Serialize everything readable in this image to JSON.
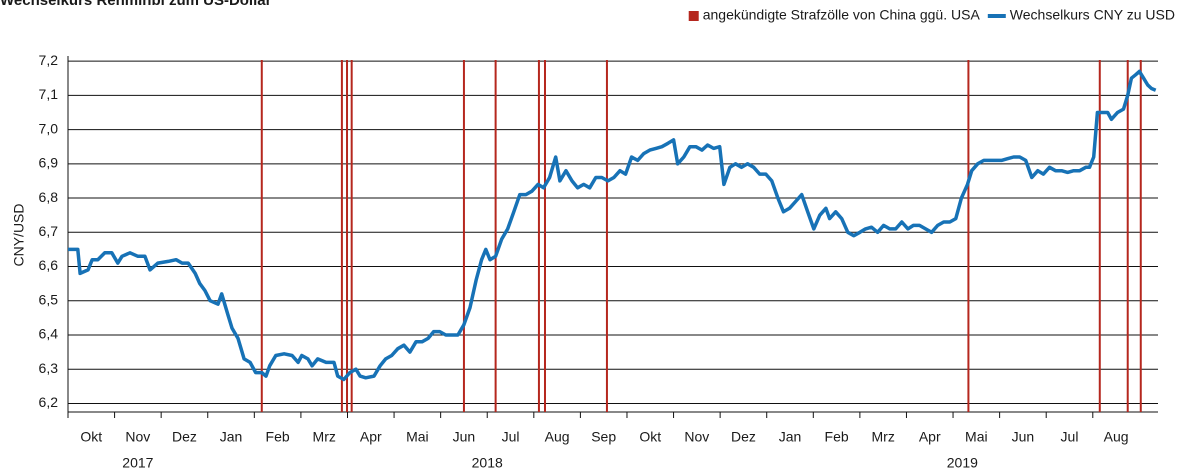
{
  "chart_data": {
    "type": "line",
    "title": "Wechselkurs Renminbi zum US-Dollar",
    "ylabel": "CNY/USD",
    "legend": "top-right",
    "grid": true,
    "xlim": [
      0,
      23.4
    ],
    "ylim": [
      6.175,
      7.215
    ],
    "yticks": [
      {
        "value": 6.2,
        "label": "6,2"
      },
      {
        "value": 6.3,
        "label": "6,3"
      },
      {
        "value": 6.4,
        "label": "6,4"
      },
      {
        "value": 6.5,
        "label": "6,5"
      },
      {
        "value": 6.6,
        "label": "6,6"
      },
      {
        "value": 6.7,
        "label": "6,7"
      },
      {
        "value": 6.8,
        "label": "6,8"
      },
      {
        "value": 6.9,
        "label": "6,9"
      },
      {
        "value": 7.0,
        "label": "7,0"
      },
      {
        "value": 7.1,
        "label": "7,1"
      },
      {
        "value": 7.2,
        "label": "7,2"
      }
    ],
    "xticks": [
      {
        "value": 0,
        "label": "Okt"
      },
      {
        "value": 1,
        "label": "Nov"
      },
      {
        "value": 2,
        "label": "Dez"
      },
      {
        "value": 3,
        "label": "Jan"
      },
      {
        "value": 4,
        "label": "Feb"
      },
      {
        "value": 5,
        "label": "Mrz"
      },
      {
        "value": 6,
        "label": "Apr"
      },
      {
        "value": 7,
        "label": "Mai"
      },
      {
        "value": 8,
        "label": "Jun"
      },
      {
        "value": 9,
        "label": "Jul"
      },
      {
        "value": 10,
        "label": "Aug"
      },
      {
        "value": 11,
        "label": "Sep"
      },
      {
        "value": 12,
        "label": "Okt"
      },
      {
        "value": 13,
        "label": "Nov"
      },
      {
        "value": 14,
        "label": "Dez"
      },
      {
        "value": 15,
        "label": "Jan"
      },
      {
        "value": 16,
        "label": "Feb"
      },
      {
        "value": 17,
        "label": "Mrz"
      },
      {
        "value": 18,
        "label": "Apr"
      },
      {
        "value": 19,
        "label": "Mai"
      },
      {
        "value": 20,
        "label": "Jun"
      },
      {
        "value": 21,
        "label": "Jul"
      },
      {
        "value": 22,
        "label": "Aug"
      }
    ],
    "year_labels": [
      {
        "value": 1.5,
        "label": "2017"
      },
      {
        "value": 9.0,
        "label": "2018"
      },
      {
        "value": 19.2,
        "label": "2019"
      }
    ],
    "events": {
      "name": "angekündigte Strafzölle von China ggü. USA",
      "color": "#b5271e",
      "x": [
        4.16,
        5.88,
        5.99,
        6.09,
        8.5,
        9.18,
        10.11,
        10.24,
        11.57,
        19.33,
        22.15,
        22.75,
        23.03
      ]
    },
    "x": [
      0,
      0.21,
      0.26,
      0.43,
      0.52,
      0.64,
      0.79,
      0.94,
      1.07,
      1.16,
      1.33,
      1.5,
      1.65,
      1.76,
      1.93,
      2.15,
      2.32,
      2.45,
      2.58,
      2.73,
      2.83,
      2.94,
      3.05,
      3.22,
      3.3,
      3.43,
      3.52,
      3.65,
      3.78,
      3.91,
      4.03,
      4.16,
      4.25,
      4.33,
      4.46,
      4.64,
      4.81,
      4.94,
      5.02,
      5.15,
      5.24,
      5.36,
      5.54,
      5.71,
      5.79,
      5.92,
      6.05,
      6.18,
      6.27,
      6.39,
      6.57,
      6.7,
      6.82,
      6.95,
      7.08,
      7.21,
      7.34,
      7.47,
      7.6,
      7.73,
      7.85,
      7.98,
      8.11,
      8.24,
      8.37,
      8.5,
      8.63,
      8.76,
      8.88,
      8.97,
      9.06,
      9.18,
      9.31,
      9.44,
      9.57,
      9.7,
      9.83,
      9.96,
      10.09,
      10.21,
      10.34,
      10.47,
      10.56,
      10.69,
      10.82,
      10.94,
      11.07,
      11.2,
      11.33,
      11.46,
      11.59,
      11.72,
      11.85,
      11.97,
      12.1,
      12.23,
      12.36,
      12.49,
      12.62,
      12.75,
      12.88,
      13,
      13.09,
      13.22,
      13.35,
      13.48,
      13.61,
      13.73,
      13.86,
      13.99,
      14.08,
      14.21,
      14.33,
      14.46,
      14.59,
      14.72,
      14.85,
      14.98,
      15.11,
      15.24,
      15.36,
      15.49,
      15.62,
      15.75,
      15.88,
      16.01,
      16.14,
      16.27,
      16.35,
      16.48,
      16.61,
      16.74,
      16.87,
      17,
      17.12,
      17.25,
      17.38,
      17.51,
      17.64,
      17.77,
      17.9,
      18.03,
      18.15,
      18.28,
      18.41,
      18.54,
      18.67,
      18.8,
      18.93,
      19.06,
      19.18,
      19.31,
      19.4,
      19.53,
      19.66,
      19.79,
      19.91,
      20.04,
      20.17,
      20.3,
      20.43,
      20.56,
      20.69,
      20.82,
      20.94,
      21.07,
      21.2,
      21.33,
      21.46,
      21.59,
      21.72,
      21.85,
      21.93,
      22.02,
      22.1,
      22.23,
      22.32,
      22.4,
      22.53,
      22.66,
      22.75,
      22.83,
      22.92,
      23,
      23.09,
      23.18,
      23.26,
      23.35
    ],
    "series": [
      {
        "name": "Wechselkurs CNY zu USD",
        "color": "#1772b6",
        "values": [
          6.65,
          6.65,
          6.58,
          6.59,
          6.62,
          6.62,
          6.64,
          6.64,
          6.61,
          6.63,
          6.64,
          6.63,
          6.63,
          6.59,
          6.61,
          6.615,
          6.62,
          6.61,
          6.61,
          6.58,
          6.55,
          6.53,
          6.5,
          6.49,
          6.52,
          6.46,
          6.42,
          6.39,
          6.33,
          6.32,
          6.29,
          6.29,
          6.28,
          6.31,
          6.34,
          6.345,
          6.34,
          6.32,
          6.34,
          6.33,
          6.31,
          6.33,
          6.32,
          6.32,
          6.28,
          6.27,
          6.29,
          6.3,
          6.28,
          6.275,
          6.28,
          6.31,
          6.33,
          6.34,
          6.36,
          6.37,
          6.35,
          6.38,
          6.38,
          6.39,
          6.41,
          6.41,
          6.4,
          6.4,
          6.4,
          6.43,
          6.48,
          6.56,
          6.62,
          6.65,
          6.62,
          6.63,
          6.68,
          6.71,
          6.76,
          6.81,
          6.81,
          6.82,
          6.84,
          6.83,
          6.86,
          6.92,
          6.85,
          6.88,
          6.85,
          6.83,
          6.84,
          6.83,
          6.86,
          6.86,
          6.85,
          6.86,
          6.88,
          6.87,
          6.92,
          6.91,
          6.93,
          6.94,
          6.945,
          6.95,
          6.96,
          6.97,
          6.9,
          6.92,
          6.95,
          6.95,
          6.94,
          6.955,
          6.945,
          6.95,
          6.84,
          6.89,
          6.9,
          6.89,
          6.9,
          6.89,
          6.87,
          6.87,
          6.85,
          6.8,
          6.76,
          6.77,
          6.79,
          6.81,
          6.76,
          6.71,
          6.75,
          6.77,
          6.74,
          6.76,
          6.74,
          6.7,
          6.69,
          6.7,
          6.71,
          6.715,
          6.7,
          6.72,
          6.71,
          6.71,
          6.73,
          6.71,
          6.72,
          6.72,
          6.71,
          6.7,
          6.72,
          6.73,
          6.73,
          6.74,
          6.8,
          6.84,
          6.88,
          6.9,
          6.91,
          6.91,
          6.91,
          6.91,
          6.915,
          6.92,
          6.92,
          6.91,
          6.86,
          6.88,
          6.87,
          6.89,
          6.88,
          6.88,
          6.875,
          6.88,
          6.88,
          6.89,
          6.89,
          6.92,
          7.05,
          7.05,
          7.05,
          7.03,
          7.05,
          7.06,
          7.1,
          7.15,
          7.16,
          7.17,
          7.15,
          7.13,
          7.12,
          7.115
        ]
      }
    ]
  }
}
